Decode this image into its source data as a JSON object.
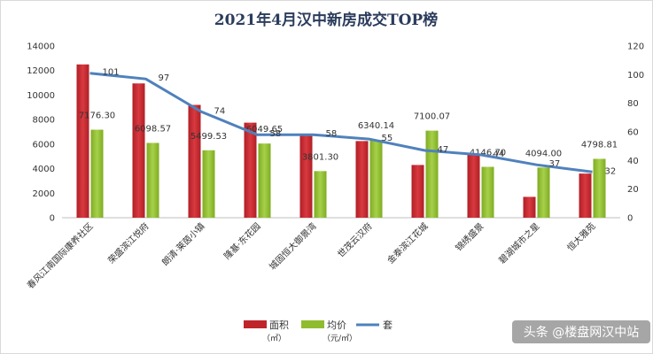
{
  "chart_data": {
    "type": "bar",
    "title": "2021年4月汉中新房成交TOP榜",
    "categories": [
      "春风江南国际康养社区",
      "荣盛滨江悦府",
      "朗清·莱茵小镇",
      "隆基·东花园",
      "城固恒大御景湾",
      "世茂云汉府",
      "金泰滨江花城",
      "锦绣盛景",
      "碧湖城市之星",
      "恒大雅苑"
    ],
    "left_axis": {
      "min": 0,
      "max": 14000,
      "ticks": [
        "0",
        "2000",
        "4000",
        "6000",
        "8000",
        "10000",
        "12000",
        "14000"
      ]
    },
    "right_axis": {
      "min": 0,
      "max": 120,
      "ticks": [
        "0",
        "20",
        "40",
        "60",
        "80",
        "100",
        "120"
      ]
    },
    "series": [
      {
        "name": "面积",
        "unit": "（㎡）",
        "type": "bar",
        "axis": "left",
        "color": "#c0242b",
        "values": [
          12500,
          10950,
          9200,
          7750,
          6700,
          6250,
          4300,
          5200,
          1700,
          3600
        ]
      },
      {
        "name": "均价",
        "unit": "（元/㎡）",
        "type": "bar",
        "axis": "left",
        "color": "#8fbc2f",
        "values": [
          7176.3,
          6098.57,
          5499.53,
          6049.65,
          3801.3,
          6340.14,
          7100.07,
          4146.7,
          4094.0,
          4798.81
        ],
        "labels": [
          "7176.30",
          "6098.57",
          "5499.53",
          "6049.65",
          "3801.30",
          "6340.14",
          "7100.07",
          "4146.70",
          "4094.00",
          "4798.81"
        ]
      },
      {
        "name": "套",
        "type": "line",
        "axis": "right",
        "color": "#4f81bd",
        "values": [
          101,
          97,
          74,
          58,
          58,
          55,
          47,
          44,
          37,
          32
        ],
        "labels": [
          "101",
          "97",
          "74",
          "58",
          "58",
          "55",
          "47",
          "44",
          "37",
          "32"
        ]
      }
    ],
    "legend_position": "bottom",
    "grid": false
  },
  "watermark": "头条 @楼盘网汉中站"
}
